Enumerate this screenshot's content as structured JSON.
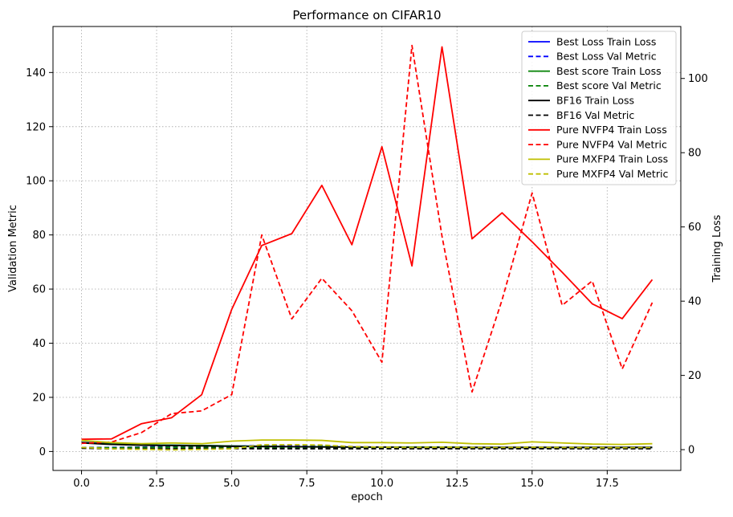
{
  "chart_data": {
    "type": "line",
    "title": "Performance on CIFAR10",
    "xlabel": "epoch",
    "ylabel_left": "Validation Metric",
    "ylabel_right": "Training Loss",
    "xlim": [
      -0.95,
      19.95
    ],
    "ylim_left": [
      -7,
      157
    ],
    "ylim_right": [
      -5.6,
      114
    ],
    "grid": true,
    "grid_style": "dotted",
    "legend_position": "top-right",
    "x_ticks": [
      0.0,
      2.5,
      5.0,
      7.5,
      10.0,
      12.5,
      15.0,
      17.5
    ],
    "x_tick_labels": [
      "0.0",
      "2.5",
      "5.0",
      "7.5",
      "10.0",
      "12.5",
      "15.0",
      "17.5"
    ],
    "y_left_ticks": [
      0,
      20,
      40,
      60,
      80,
      100,
      120,
      140
    ],
    "y_left_tick_labels": [
      "0",
      "20",
      "40",
      "60",
      "80",
      "100",
      "120",
      "140"
    ],
    "y_right_ticks": [
      0,
      20,
      40,
      60,
      80,
      100
    ],
    "y_right_tick_labels": [
      "0",
      "20",
      "40",
      "60",
      "80",
      "100"
    ],
    "x": [
      0,
      1,
      2,
      3,
      4,
      5,
      6,
      7,
      8,
      9,
      10,
      11,
      12,
      13,
      14,
      15,
      16,
      17,
      18,
      19
    ],
    "series": [
      {
        "name": "Best Loss Train Loss",
        "axis": "right",
        "color": "#0000ff",
        "dash": "solid",
        "values": [
          2.0,
          1.6,
          1.3,
          1.2,
          1.1,
          1.0,
          0.9,
          0.8,
          0.8,
          0.7,
          0.7,
          0.7,
          0.7,
          0.6,
          0.6,
          0.6,
          0.6,
          0.6,
          0.6,
          0.6
        ]
      },
      {
        "name": "Best Loss Val Metric",
        "axis": "left",
        "color": "#0000ff",
        "dash": "dashed",
        "values": [
          1.5,
          1.5,
          1.6,
          2.0,
          1.8,
          1.8,
          2.3,
          2.2,
          2.2,
          1.8,
          1.6,
          1.6,
          1.6,
          1.5,
          1.6,
          1.6,
          1.5,
          1.5,
          1.5,
          1.6
        ]
      },
      {
        "name": "Best score Train Loss",
        "axis": "right",
        "color": "#008000",
        "dash": "solid",
        "values": [
          1.9,
          1.5,
          1.3,
          1.2,
          1.1,
          1.0,
          0.9,
          0.8,
          0.8,
          0.7,
          0.7,
          0.7,
          0.7,
          0.6,
          0.6,
          0.6,
          0.6,
          0.6,
          0.6,
          0.6
        ]
      },
      {
        "name": "Best score Val Metric",
        "axis": "left",
        "color": "#008000",
        "dash": "dashed",
        "values": [
          1.4,
          1.4,
          1.5,
          1.6,
          1.5,
          1.5,
          1.4,
          1.4,
          1.4,
          1.3,
          1.3,
          1.3,
          1.3,
          1.3,
          1.3,
          1.3,
          1.3,
          1.3,
          1.3,
          1.3
        ]
      },
      {
        "name": "BF16 Train Loss",
        "axis": "right",
        "color": "#000000",
        "dash": "solid",
        "values": [
          1.8,
          1.4,
          1.2,
          1.1,
          1.0,
          0.9,
          0.8,
          0.8,
          0.7,
          0.7,
          0.7,
          0.6,
          0.6,
          0.6,
          0.6,
          0.6,
          0.6,
          0.6,
          0.6,
          0.6
        ]
      },
      {
        "name": "BF16 Val Metric",
        "axis": "left",
        "color": "#000000",
        "dash": "dashed",
        "values": [
          1.2,
          1.0,
          1.0,
          1.0,
          1.1,
          1.1,
          1.0,
          1.0,
          1.0,
          1.0,
          1.0,
          1.0,
          1.0,
          1.0,
          1.0,
          1.0,
          1.0,
          1.0,
          1.0,
          1.0
        ]
      },
      {
        "name": "Pure NVFP4 Train Loss",
        "axis": "right",
        "color": "#ff0000",
        "dash": "solid",
        "values": [
          2.8,
          2.9,
          7.0,
          8.6,
          14.8,
          37.8,
          55.0,
          58.2,
          71.2,
          55.2,
          81.6,
          49.5,
          108.5,
          56.8,
          63.8,
          56.0,
          47.8,
          39.3,
          35.3,
          45.8
        ]
      },
      {
        "name": "Pure NVFP4 Val Metric",
        "axis": "left",
        "color": "#ff0000",
        "dash": "dashed",
        "values": [
          3.0,
          3.5,
          7.0,
          14.0,
          15.0,
          21.0,
          80.0,
          49.0,
          64.0,
          52.0,
          33.0,
          150.0,
          79.5,
          22.0,
          56.0,
          95.5,
          54.0,
          63.0,
          30.5,
          55.0
        ]
      },
      {
        "name": "Pure MXFP4 Train Loss",
        "axis": "right",
        "color": "#bfbf00",
        "dash": "solid",
        "values": [
          2.5,
          1.9,
          1.6,
          1.8,
          1.6,
          2.3,
          2.6,
          2.6,
          2.5,
          1.9,
          1.9,
          1.8,
          2.0,
          1.6,
          1.5,
          2.1,
          1.8,
          1.5,
          1.4,
          1.6
        ]
      },
      {
        "name": "Pure MXFP4 Val Metric",
        "axis": "left",
        "color": "#bfbf00",
        "dash": "dashed",
        "values": [
          1.5,
          1.0,
          0.8,
          0.6,
          0.8,
          1.0,
          2.5,
          2.5,
          2.4,
          1.8,
          1.6,
          1.5,
          1.6,
          1.5,
          1.5,
          1.6,
          1.5,
          1.4,
          1.4,
          1.5
        ]
      }
    ]
  }
}
